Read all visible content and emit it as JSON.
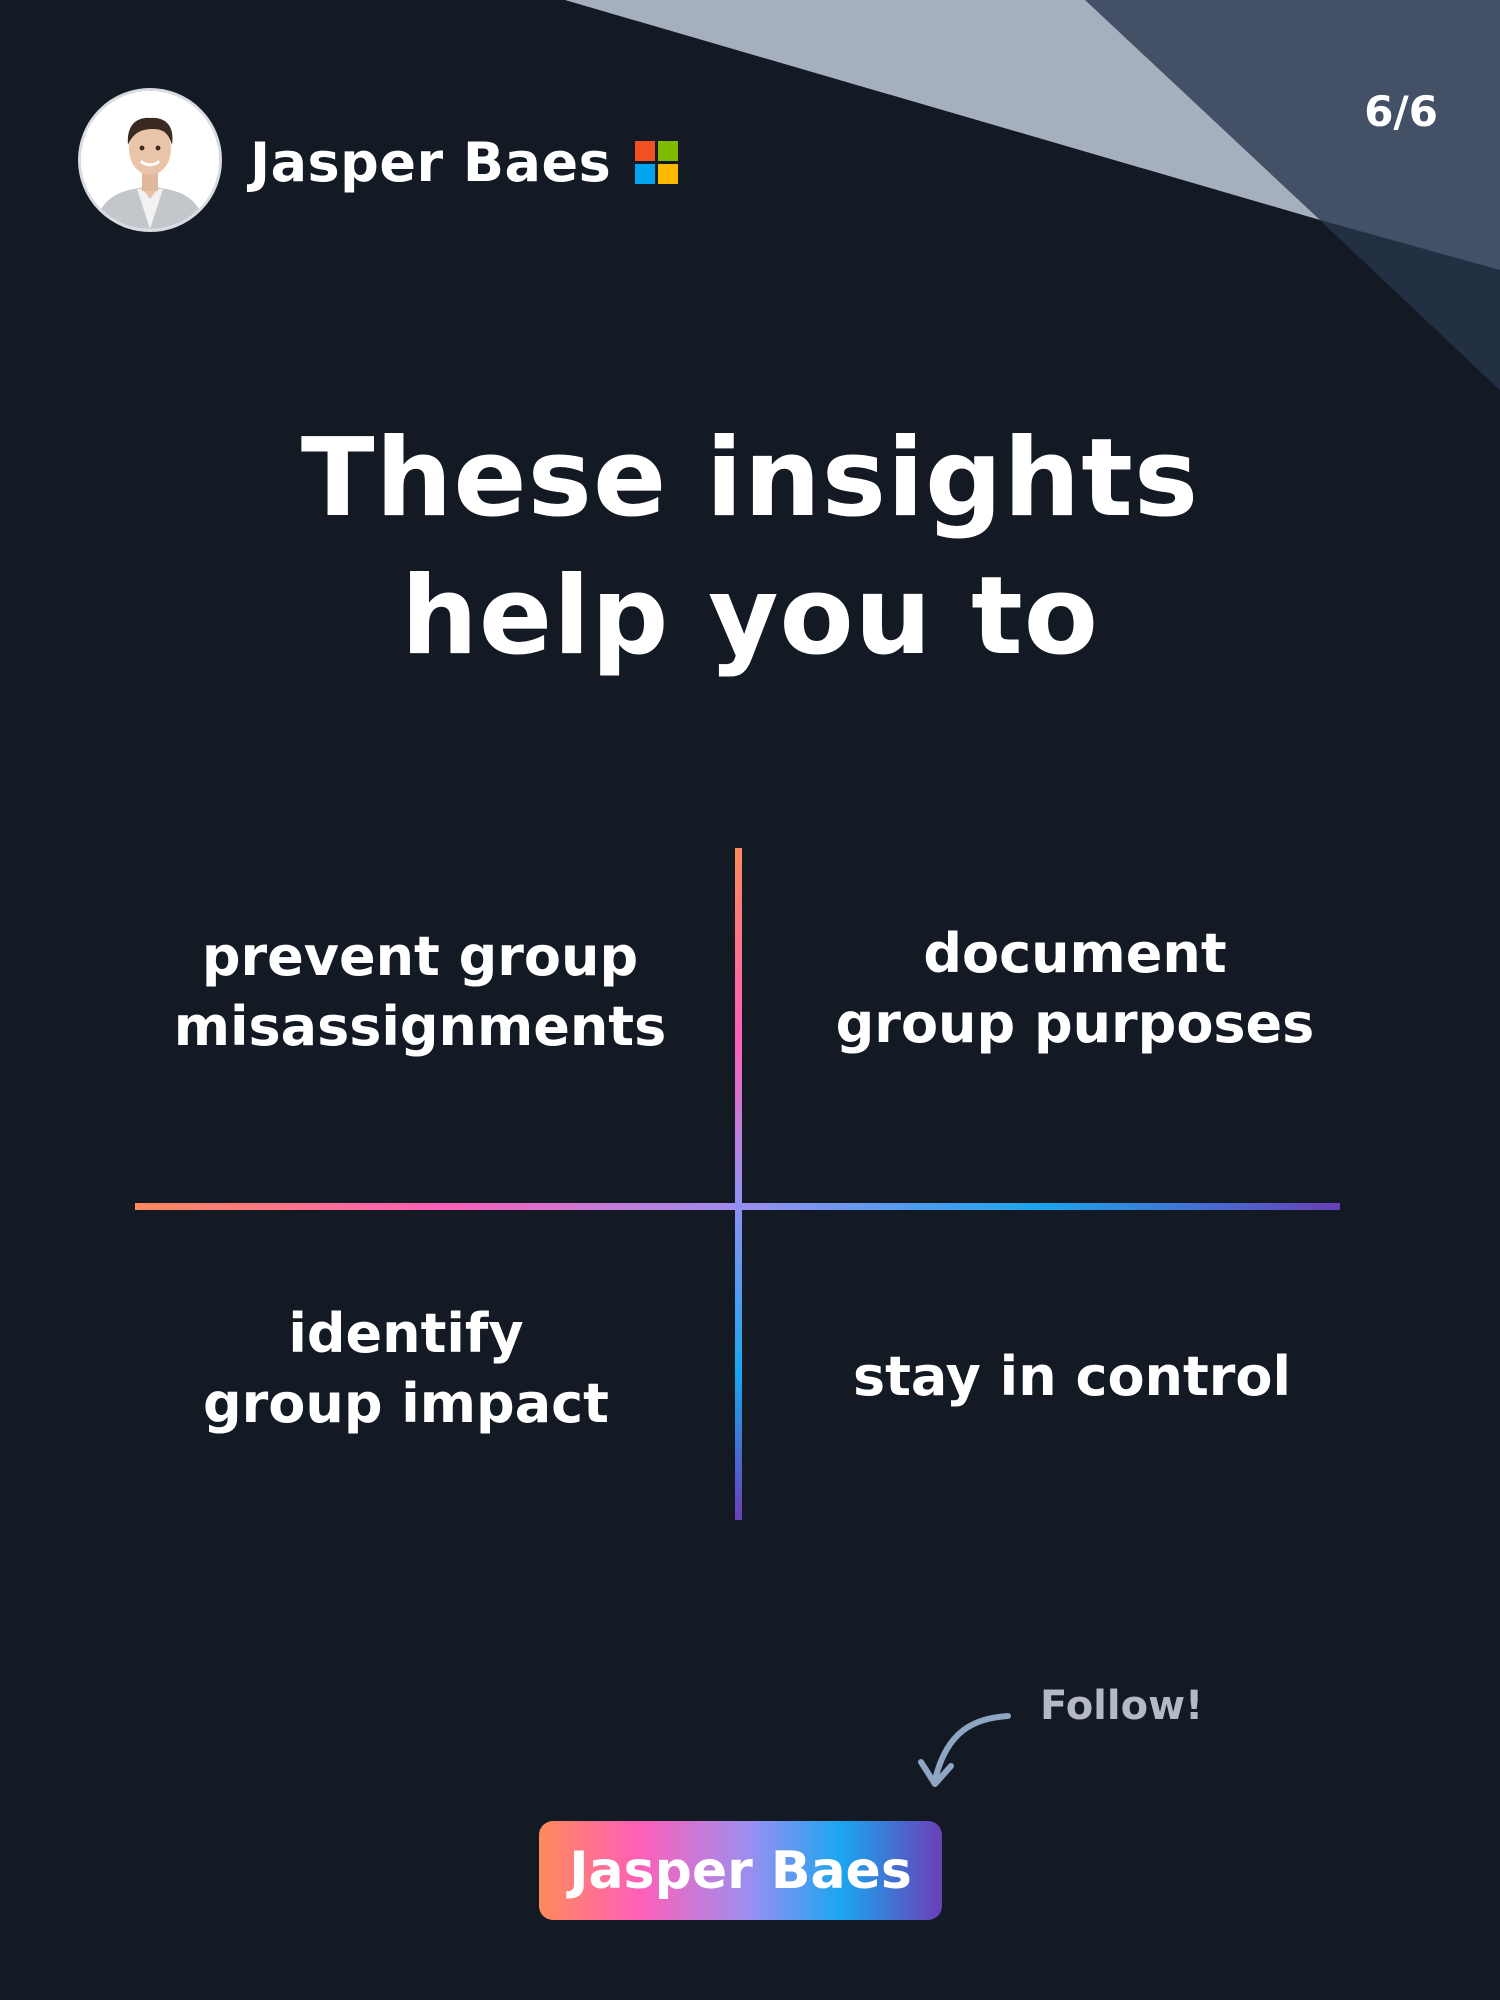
{
  "header": {
    "author_name": "Jasper Baes",
    "page_indicator": "6/6",
    "avatar_icon": "profile-photo",
    "badge_icon": "microsoft-logo-icon"
  },
  "main": {
    "title_lines": [
      "These insights",
      "help you to"
    ],
    "quadrants": [
      {
        "lines": [
          "prevent group",
          "misassignments"
        ]
      },
      {
        "lines": [
          "document",
          "group purposes"
        ]
      },
      {
        "lines": [
          "identify",
          "group impact"
        ]
      },
      {
        "lines": [
          "stay in control"
        ]
      }
    ]
  },
  "footer": {
    "follow_hint": "Follow!",
    "button_label": "Jasper Baes"
  },
  "colors": {
    "background": "#131a24",
    "text": "#ffffff",
    "muted_text": "#b4b9c3",
    "gradient": [
      "#ff8a5b",
      "#ff5fb8",
      "#9c8ef0",
      "#1aa6ef",
      "#6a3fb8"
    ]
  }
}
